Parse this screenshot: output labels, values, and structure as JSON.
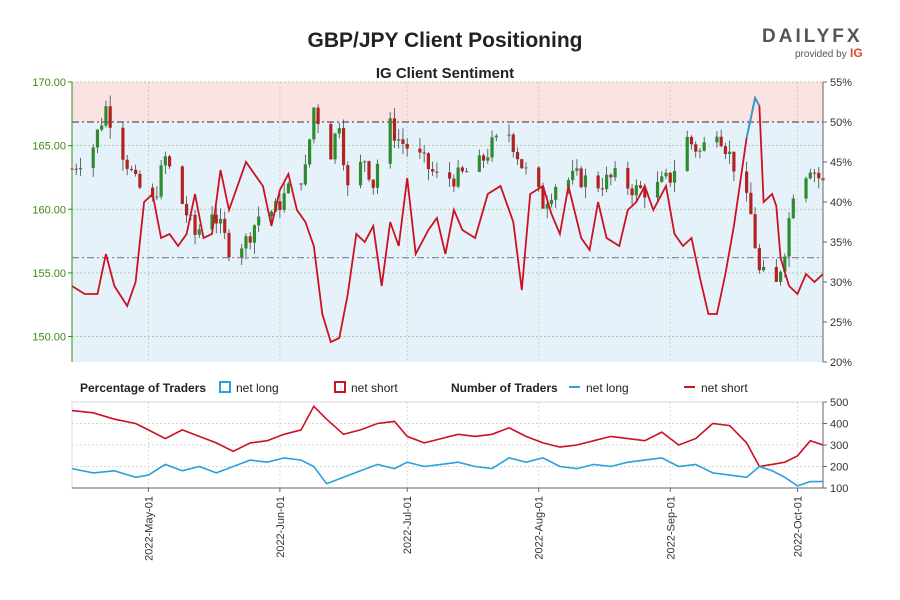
{
  "header": {
    "title": "GBP/JPY Client Positioning",
    "subtitle": "IG Client Sentiment"
  },
  "logo": {
    "brand": "DAILYFX",
    "provided_by": "provided by",
    "ig": "IG"
  },
  "colors": {
    "net_long": "#2aa0dc",
    "net_short": "#cc1122",
    "bull_candle": "#2e8b2e",
    "bear_candle": "#b22222",
    "top_zone": "#fbe3e3",
    "bottom_zone": "#e6f2fa",
    "price_axis": "#3a8a1a"
  },
  "legend": {
    "percentage_heading": "Percentage of Traders",
    "net_long": "net long",
    "net_short": "net short",
    "number_heading": "Number of Traders",
    "number_net_long": "net long",
    "number_net_short": "net short"
  },
  "chart_data": [
    {
      "type": "candlestick",
      "name": "price",
      "y_left_ticks": [
        "150.00",
        "155.00",
        "160.00",
        "165.00",
        "170.00"
      ],
      "y_left_range": [
        148.0,
        170.0
      ],
      "y_right_ticks": [
        "20%",
        "25%",
        "30%",
        "35%",
        "40%",
        "45%",
        "50%",
        "55%"
      ],
      "y_right_range": [
        20,
        55
      ],
      "reference_lines": {
        "price": 156.2,
        "percent": 50
      },
      "x_start": "2022-04-13",
      "x_end": "2022-10-07",
      "x_ticks": [
        "2022-May-01",
        "2022-Jun-01",
        "2022-Jul-01",
        "2022-Aug-01",
        "2022-Sep-01",
        "2022-Oct-01"
      ],
      "x_tick_dates": [
        "2022-05-01",
        "2022-06-01",
        "2022-07-01",
        "2022-08-01",
        "2022-09-01",
        "2022-10-01"
      ],
      "close_path": [
        [
          "2022-04-13",
          163.2
        ],
        [
          "2022-04-18",
          165.0
        ],
        [
          "2022-04-21",
          168.0
        ],
        [
          "2022-04-25",
          164.5
        ],
        [
          "2022-04-28",
          162.0
        ],
        [
          "2022-05-02",
          160.5
        ],
        [
          "2022-05-05",
          164.0
        ],
        [
          "2022-05-09",
          160.5
        ],
        [
          "2022-05-12",
          158.0
        ],
        [
          "2022-05-16",
          160.0
        ],
        [
          "2022-05-20",
          157.0
        ],
        [
          "2022-05-24",
          157.5
        ],
        [
          "2022-05-27",
          159.5
        ],
        [
          "2022-05-31",
          160.0
        ],
        [
          "2022-06-03",
          161.5
        ],
        [
          "2022-06-07",
          163.0
        ],
        [
          "2022-06-09",
          168.0
        ],
        [
          "2022-06-13",
          164.5
        ],
        [
          "2022-06-15",
          167.0
        ],
        [
          "2022-06-17",
          161.5
        ],
        [
          "2022-06-21",
          164.0
        ],
        [
          "2022-06-23",
          162.0
        ],
        [
          "2022-06-26",
          167.0
        ],
        [
          "2022-06-29",
          165.5
        ],
        [
          "2022-07-04",
          164.0
        ],
        [
          "2022-07-08",
          162.5
        ],
        [
          "2022-07-13",
          162.5
        ],
        [
          "2022-07-18",
          163.5
        ],
        [
          "2022-07-21",
          165.0
        ],
        [
          "2022-07-25",
          166.0
        ],
        [
          "2022-07-28",
          163.5
        ],
        [
          "2022-08-02",
          160.5
        ],
        [
          "2022-08-05",
          162.0
        ],
        [
          "2022-08-10",
          162.5
        ],
        [
          "2022-08-15",
          162.0
        ],
        [
          "2022-08-19",
          162.5
        ],
        [
          "2022-08-24",
          161.5
        ],
        [
          "2022-08-28",
          161.5
        ],
        [
          "2022-09-01",
          162.5
        ],
        [
          "2022-09-05",
          165.5
        ],
        [
          "2022-09-08",
          164.5
        ],
        [
          "2022-09-12",
          166.5
        ],
        [
          "2022-09-16",
          163.5
        ],
        [
          "2022-09-20",
          159.5
        ],
        [
          "2022-09-22",
          155.0
        ],
        [
          "2022-09-26",
          154.0
        ],
        [
          "2022-09-28",
          157.0
        ],
        [
          "2022-09-30",
          161.5
        ],
        [
          "2022-10-04",
          163.5
        ],
        [
          "2022-10-07",
          162.0
        ]
      ],
      "net_short_pct": [
        [
          "2022-04-13",
          29.5
        ],
        [
          "2022-04-16",
          28.5
        ],
        [
          "2022-04-19",
          28.5
        ],
        [
          "2022-04-21",
          33.5
        ],
        [
          "2022-04-23",
          29.5
        ],
        [
          "2022-04-26",
          27.0
        ],
        [
          "2022-04-28",
          30.0
        ],
        [
          "2022-04-30",
          40.0
        ],
        [
          "2022-05-02",
          41.0
        ],
        [
          "2022-05-04",
          35.5
        ],
        [
          "2022-05-06",
          36.0
        ],
        [
          "2022-05-08",
          34.5
        ],
        [
          "2022-05-10",
          36.0
        ],
        [
          "2022-05-12",
          41.0
        ],
        [
          "2022-05-14",
          35.5
        ],
        [
          "2022-05-16",
          36.0
        ],
        [
          "2022-05-18",
          44.0
        ],
        [
          "2022-05-20",
          39.0
        ],
        [
          "2022-05-22",
          42.0
        ],
        [
          "2022-05-24",
          45.0
        ],
        [
          "2022-05-26",
          43.5
        ],
        [
          "2022-05-28",
          42.0
        ],
        [
          "2022-05-30",
          37.0
        ],
        [
          "2022-06-01",
          41.5
        ],
        [
          "2022-06-03",
          43.5
        ],
        [
          "2022-06-05",
          39.0
        ],
        [
          "2022-06-07",
          37.5
        ],
        [
          "2022-06-09",
          34.5
        ],
        [
          "2022-06-11",
          26.0
        ],
        [
          "2022-06-13",
          22.5
        ],
        [
          "2022-06-15",
          23.0
        ],
        [
          "2022-06-17",
          28.5
        ],
        [
          "2022-06-19",
          36.0
        ],
        [
          "2022-06-21",
          35.0
        ],
        [
          "2022-06-23",
          37.0
        ],
        [
          "2022-06-25",
          29.5
        ],
        [
          "2022-06-27",
          37.5
        ],
        [
          "2022-06-29",
          34.5
        ],
        [
          "2022-07-01",
          43.0
        ],
        [
          "2022-07-03",
          33.5
        ],
        [
          "2022-07-06",
          36.5
        ],
        [
          "2022-07-08",
          38.0
        ],
        [
          "2022-07-10",
          33.5
        ],
        [
          "2022-07-12",
          39.0
        ],
        [
          "2022-07-14",
          36.5
        ],
        [
          "2022-07-17",
          35.5
        ],
        [
          "2022-07-20",
          41.0
        ],
        [
          "2022-07-23",
          42.0
        ],
        [
          "2022-07-26",
          37.5
        ],
        [
          "2022-07-28",
          29.0
        ],
        [
          "2022-07-30",
          41.0
        ],
        [
          "2022-08-02",
          42.0
        ],
        [
          "2022-08-04",
          38.5
        ],
        [
          "2022-08-06",
          36.0
        ],
        [
          "2022-08-08",
          42.0
        ],
        [
          "2022-08-11",
          35.5
        ],
        [
          "2022-08-13",
          34.0
        ],
        [
          "2022-08-15",
          40.0
        ],
        [
          "2022-08-17",
          35.5
        ],
        [
          "2022-08-20",
          34.5
        ],
        [
          "2022-08-22",
          39.0
        ],
        [
          "2022-08-24",
          40.0
        ],
        [
          "2022-08-26",
          42.0
        ],
        [
          "2022-08-28",
          39.0
        ],
        [
          "2022-08-31",
          42.0
        ],
        [
          "2022-09-02",
          36.0
        ],
        [
          "2022-09-04",
          34.5
        ],
        [
          "2022-09-06",
          35.5
        ],
        [
          "2022-09-08",
          30.5
        ],
        [
          "2022-09-10",
          26.0
        ],
        [
          "2022-09-12",
          26.0
        ],
        [
          "2022-09-14",
          31.0
        ],
        [
          "2022-09-16",
          37.0
        ],
        [
          "2022-09-19",
          48.0
        ],
        [
          "2022-09-21",
          53.0
        ],
        [
          "2022-09-22",
          52.0
        ],
        [
          "2022-09-23",
          40.0
        ],
        [
          "2022-09-25",
          41.0
        ],
        [
          "2022-09-26",
          39.5
        ],
        [
          "2022-09-27",
          33.0
        ],
        [
          "2022-09-29",
          29.5
        ],
        [
          "2022-10-01",
          28.5
        ],
        [
          "2022-10-03",
          31.0
        ],
        [
          "2022-10-05",
          30.0
        ],
        [
          "2022-10-07",
          31.0
        ]
      ]
    },
    {
      "type": "line",
      "name": "number_of_traders",
      "y_ticks": [
        "100",
        "200",
        "300",
        "400",
        "500"
      ],
      "y_range": [
        100,
        500
      ],
      "net_short_counts": [
        [
          "2022-04-13",
          460
        ],
        [
          "2022-04-18",
          450
        ],
        [
          "2022-04-23",
          420
        ],
        [
          "2022-04-28",
          400
        ],
        [
          "2022-05-01",
          370
        ],
        [
          "2022-05-05",
          330
        ],
        [
          "2022-05-09",
          370
        ],
        [
          "2022-05-13",
          340
        ],
        [
          "2022-05-17",
          310
        ],
        [
          "2022-05-21",
          270
        ],
        [
          "2022-05-25",
          310
        ],
        [
          "2022-05-29",
          320
        ],
        [
          "2022-06-02",
          350
        ],
        [
          "2022-06-06",
          370
        ],
        [
          "2022-06-09",
          480
        ],
        [
          "2022-06-12",
          420
        ],
        [
          "2022-06-16",
          350
        ],
        [
          "2022-06-20",
          370
        ],
        [
          "2022-06-24",
          400
        ],
        [
          "2022-06-28",
          410
        ],
        [
          "2022-07-01",
          340
        ],
        [
          "2022-07-05",
          310
        ],
        [
          "2022-07-09",
          330
        ],
        [
          "2022-07-13",
          350
        ],
        [
          "2022-07-17",
          340
        ],
        [
          "2022-07-21",
          350
        ],
        [
          "2022-07-25",
          380
        ],
        [
          "2022-07-29",
          340
        ],
        [
          "2022-08-02",
          310
        ],
        [
          "2022-08-06",
          290
        ],
        [
          "2022-08-10",
          300
        ],
        [
          "2022-08-14",
          320
        ],
        [
          "2022-08-18",
          340
        ],
        [
          "2022-08-22",
          330
        ],
        [
          "2022-08-26",
          320
        ],
        [
          "2022-08-30",
          360
        ],
        [
          "2022-09-03",
          300
        ],
        [
          "2022-09-07",
          330
        ],
        [
          "2022-09-11",
          400
        ],
        [
          "2022-09-15",
          390
        ],
        [
          "2022-09-19",
          310
        ],
        [
          "2022-09-22",
          200
        ],
        [
          "2022-09-25",
          210
        ],
        [
          "2022-09-28",
          220
        ],
        [
          "2022-10-01",
          250
        ],
        [
          "2022-10-04",
          320
        ],
        [
          "2022-10-07",
          300
        ]
      ],
      "net_long_counts": [
        [
          "2022-04-13",
          190
        ],
        [
          "2022-04-18",
          170
        ],
        [
          "2022-04-23",
          180
        ],
        [
          "2022-04-28",
          150
        ],
        [
          "2022-05-01",
          160
        ],
        [
          "2022-05-05",
          210
        ],
        [
          "2022-05-09",
          180
        ],
        [
          "2022-05-13",
          200
        ],
        [
          "2022-05-17",
          170
        ],
        [
          "2022-05-21",
          200
        ],
        [
          "2022-05-25",
          230
        ],
        [
          "2022-05-29",
          220
        ],
        [
          "2022-06-02",
          240
        ],
        [
          "2022-06-06",
          230
        ],
        [
          "2022-06-09",
          200
        ],
        [
          "2022-06-12",
          120
        ],
        [
          "2022-06-16",
          150
        ],
        [
          "2022-06-20",
          180
        ],
        [
          "2022-06-24",
          210
        ],
        [
          "2022-06-28",
          190
        ],
        [
          "2022-07-01",
          220
        ],
        [
          "2022-07-05",
          200
        ],
        [
          "2022-07-09",
          210
        ],
        [
          "2022-07-13",
          220
        ],
        [
          "2022-07-17",
          200
        ],
        [
          "2022-07-21",
          190
        ],
        [
          "2022-07-25",
          240
        ],
        [
          "2022-07-29",
          220
        ],
        [
          "2022-08-02",
          240
        ],
        [
          "2022-08-06",
          200
        ],
        [
          "2022-08-10",
          190
        ],
        [
          "2022-08-14",
          210
        ],
        [
          "2022-08-18",
          200
        ],
        [
          "2022-08-22",
          220
        ],
        [
          "2022-08-26",
          230
        ],
        [
          "2022-08-30",
          240
        ],
        [
          "2022-09-03",
          200
        ],
        [
          "2022-09-07",
          210
        ],
        [
          "2022-09-11",
          170
        ],
        [
          "2022-09-15",
          160
        ],
        [
          "2022-09-19",
          150
        ],
        [
          "2022-09-22",
          200
        ],
        [
          "2022-09-25",
          180
        ],
        [
          "2022-09-28",
          150
        ],
        [
          "2022-10-01",
          110
        ],
        [
          "2022-10-04",
          130
        ],
        [
          "2022-10-07",
          130
        ]
      ]
    }
  ]
}
